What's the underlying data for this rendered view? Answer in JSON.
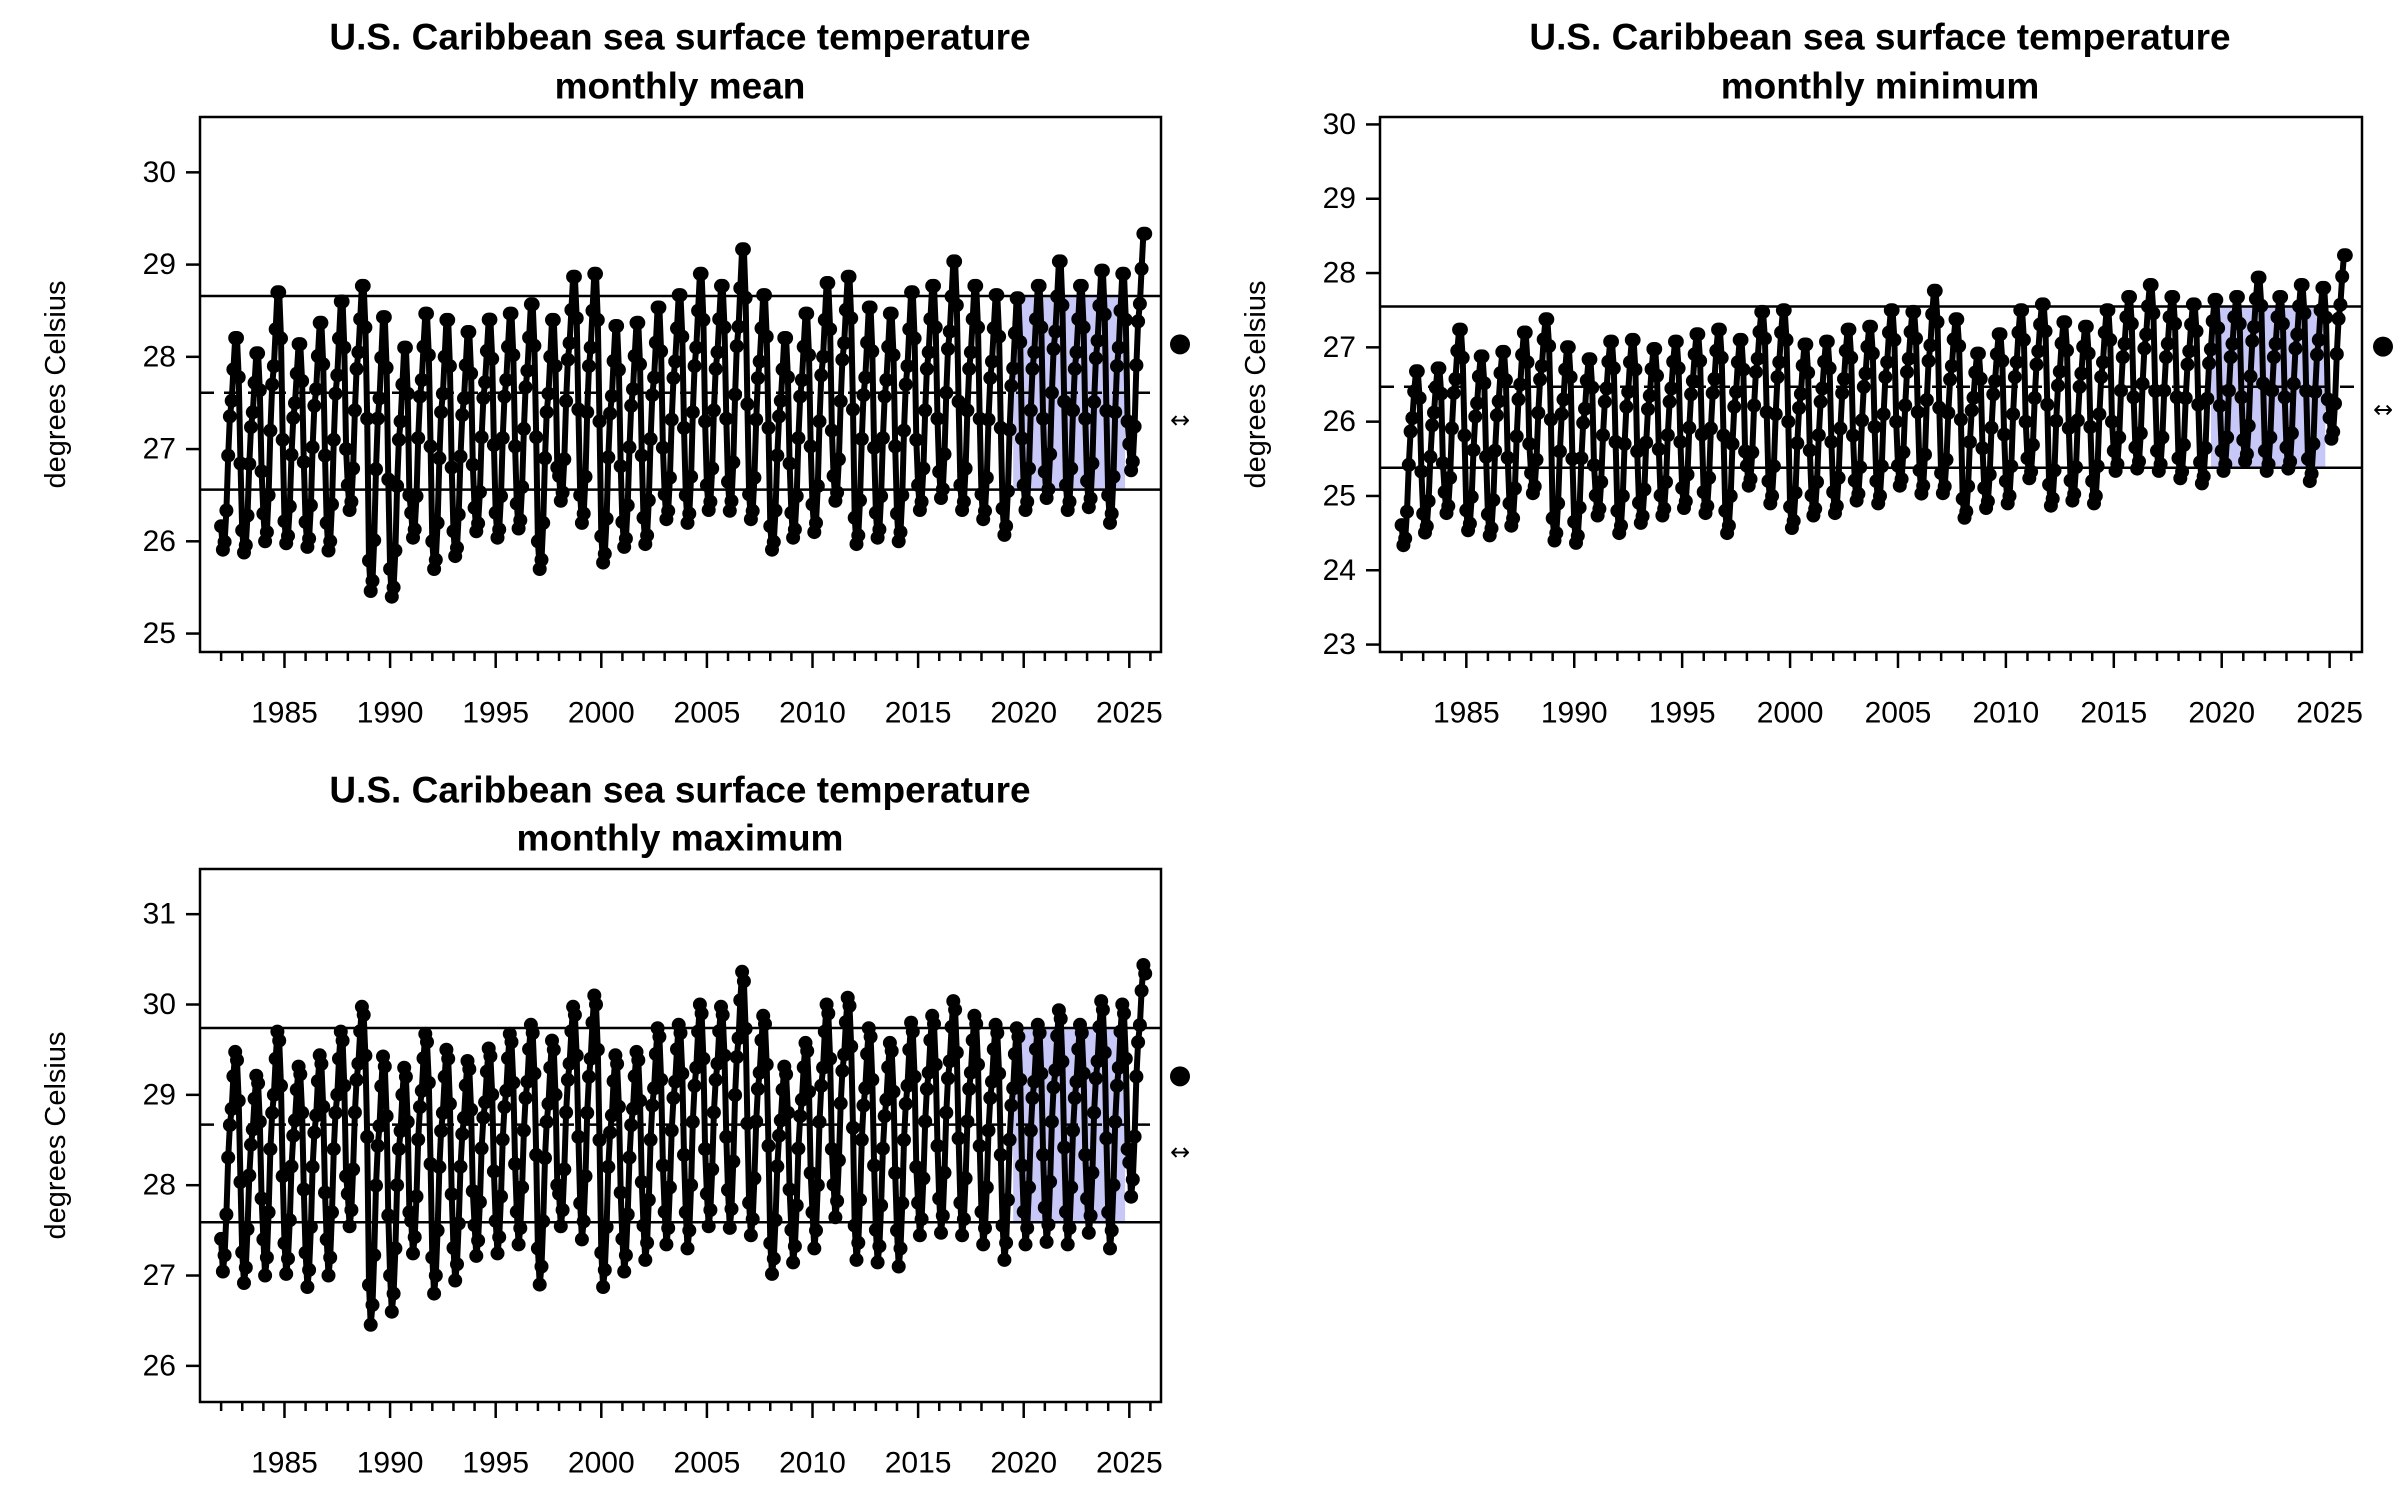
{
  "chart_data": [
    {
      "type": "line",
      "title": "U.S. Caribbean sea surface temperature",
      "subtitle": "monthly mean",
      "xlabel": "",
      "ylabel": "degrees Celsius",
      "xlim": [
        1981,
        2026.5
      ],
      "ylim": [
        24.8,
        30.6
      ],
      "x_ticks": [
        1985,
        1990,
        1995,
        2000,
        2005,
        2010,
        2015,
        2020,
        2025
      ],
      "y_ticks": [
        25,
        26,
        27,
        28,
        29,
        30
      ],
      "reference_lines": {
        "upper": 28.66,
        "mean": 27.61,
        "lower": 26.56
      },
      "highlight_period": [
        2019,
        2024
      ],
      "trend_symbol": "↔",
      "recent_status": "above",
      "start_year": 1982,
      "seasonal_means": [
        26.2,
        25.9,
        26.0,
        26.4,
        27.1,
        27.6,
        27.8,
        28.2,
        28.6,
        28.6,
        28.1,
        27.0
      ],
      "annual_offsets": [
        -0.2,
        -0.3,
        0.1,
        -0.2,
        -0.1,
        0.0,
        0.3,
        -0.3,
        -0.5,
        0.0,
        -0.2,
        -0.2,
        0.0,
        0.0,
        0.1,
        -0.2,
        0.4,
        0.3,
        -0.2,
        -0.1,
        0.0,
        0.2,
        0.3,
        0.3,
        0.5,
        0.2,
        -0.2,
        0.0,
        0.2,
        0.4,
        0.0,
        0.0,
        0.1,
        0.3,
        0.5,
        0.3,
        0.2,
        0.1,
        0.3,
        0.5,
        0.3,
        0.4,
        0.3,
        0.8
      ],
      "seasonal_amplitude": [
        0.85,
        0.8,
        1.0,
        0.8,
        0.9,
        1.0,
        0.9,
        1.1,
        1.0,
        0.9,
        1.0,
        0.9,
        0.85,
        0.9,
        0.9,
        1.0,
        0.9,
        1.0,
        0.95,
        0.9,
        0.95,
        0.9,
        1.0,
        0.9,
        1.05,
        0.9,
        0.85,
        0.9,
        1.0,
        0.9,
        0.95,
        0.9,
        1.0,
        0.9,
        0.95,
        0.9,
        0.9,
        0.95,
        0.9,
        0.95,
        0.9,
        0.95,
        1.0,
        0.95
      ],
      "values_end_month": 10
    },
    {
      "type": "line",
      "title": "U.S. Caribbean sea surface temperature",
      "subtitle": "monthly minimum",
      "xlabel": "",
      "ylabel": "degrees Celsius",
      "xlim": [
        1981,
        2026.5
      ],
      "ylim": [
        22.9,
        30.1
      ],
      "x_ticks": [
        1985,
        1990,
        1995,
        2000,
        2005,
        2010,
        2015,
        2020,
        2025
      ],
      "y_ticks": [
        23,
        24,
        25,
        26,
        27,
        28,
        29,
        30
      ],
      "reference_lines": {
        "upper": 27.55,
        "mean": 26.47,
        "lower": 25.38
      },
      "highlight_period": [
        2019,
        2024
      ],
      "trend_symbol": "↔",
      "recent_status": "above",
      "start_year": 1982,
      "seasonal_means": [
        25.0,
        24.7,
        24.8,
        25.2,
        25.9,
        26.4,
        26.6,
        27.0,
        27.3,
        27.3,
        26.9,
        25.8
      ],
      "annual_offsets": [
        -0.5,
        -0.4,
        0.0,
        -0.3,
        -0.3,
        -0.1,
        0.2,
        -0.3,
        -0.4,
        -0.1,
        -0.2,
        -0.2,
        -0.1,
        0.0,
        0.0,
        -0.2,
        0.3,
        0.2,
        -0.2,
        -0.1,
        0.0,
        0.1,
        0.2,
        0.3,
        0.4,
        0.2,
        -0.2,
        0.0,
        0.2,
        0.4,
        0.1,
        0.1,
        0.2,
        0.5,
        0.6,
        0.5,
        0.4,
        0.4,
        0.5,
        0.7,
        0.5,
        0.6,
        0.5,
        1.0
      ],
      "seasonal_amplitude": [
        0.9,
        0.85,
        0.95,
        0.9,
        0.95,
        1.0,
        0.9,
        1.0,
        0.95,
        0.9,
        1.0,
        0.9,
        0.9,
        0.9,
        0.95,
        1.0,
        0.9,
        1.0,
        0.95,
        0.9,
        0.95,
        0.9,
        1.0,
        0.9,
        1.05,
        0.9,
        0.85,
        0.9,
        1.0,
        0.9,
        0.95,
        0.9,
        1.0,
        0.9,
        0.95,
        0.9,
        0.9,
        0.95,
        0.9,
        0.95,
        0.9,
        0.95,
        1.0,
        0.95
      ],
      "values_end_month": 10
    },
    {
      "type": "line",
      "title": "U.S. Caribbean sea surface temperature",
      "subtitle": "monthly maximum",
      "xlabel": "",
      "ylabel": "degrees Celsius",
      "xlim": [
        1981,
        2026.5
      ],
      "ylim": [
        25.6,
        31.5
      ],
      "x_ticks": [
        1985,
        1990,
        1995,
        2000,
        2005,
        2010,
        2015,
        2020,
        2025
      ],
      "y_ticks": [
        26,
        27,
        28,
        29,
        30,
        31
      ],
      "reference_lines": {
        "upper": 29.74,
        "mean": 28.67,
        "lower": 27.59
      },
      "highlight_period": [
        2019,
        2024
      ],
      "trend_symbol": "↔",
      "recent_status": "above",
      "start_year": 1982,
      "seasonal_means": [
        27.4,
        27.0,
        27.2,
        27.7,
        28.4,
        28.8,
        29.0,
        29.4,
        29.7,
        29.6,
        29.1,
        28.1
      ],
      "annual_offsets": [
        -0.1,
        -0.3,
        0.0,
        -0.2,
        -0.2,
        0.0,
        0.4,
        -0.4,
        -0.4,
        0.1,
        -0.2,
        -0.2,
        0.0,
        0.1,
        0.2,
        -0.1,
        0.4,
        0.4,
        -0.2,
        -0.1,
        0.1,
        0.2,
        0.3,
        0.4,
        0.6,
        0.3,
        -0.2,
        0.0,
        0.3,
        0.5,
        0.1,
        0.0,
        0.1,
        0.3,
        0.4,
        0.3,
        0.2,
        0.1,
        0.2,
        0.3,
        0.2,
        0.4,
        0.3,
        0.8
      ],
      "seasonal_amplitude": [
        0.9,
        0.85,
        1.0,
        0.85,
        0.95,
        1.0,
        0.9,
        1.1,
        1.0,
        0.9,
        1.0,
        0.9,
        0.85,
        0.9,
        0.9,
        1.0,
        0.9,
        1.0,
        0.95,
        0.9,
        0.95,
        0.9,
        1.0,
        0.9,
        1.05,
        0.9,
        0.85,
        0.9,
        1.0,
        0.9,
        0.95,
        0.9,
        1.0,
        0.9,
        0.95,
        0.9,
        0.9,
        0.95,
        0.9,
        0.95,
        0.9,
        0.95,
        1.0,
        0.95
      ],
      "values_end_month": 10
    }
  ]
}
